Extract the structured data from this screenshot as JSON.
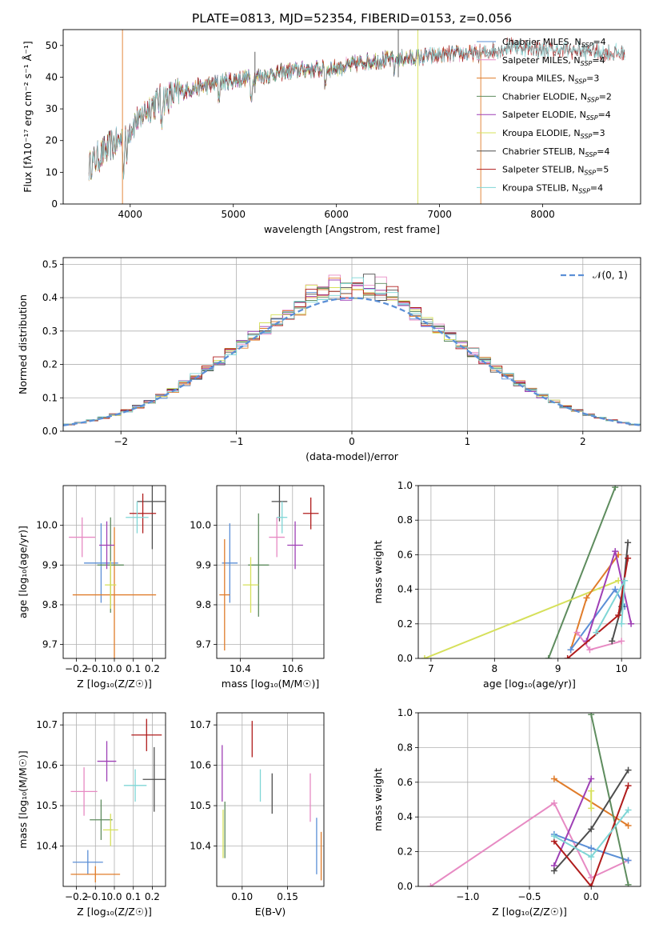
{
  "figure": {
    "title": "PLATE=0813, MJD=52354, FIBERID=0153, z=0.056"
  },
  "chart_data": [
    {
      "id": "spectrum",
      "type": "line",
      "title": "PLATE=0813, MJD=52354, FIBERID=0153, z=0.056",
      "xlabel": "wavelength [Angstrom, rest frame]",
      "ylabel": "Flux [fλ10⁻¹⁷ erg cm⁻² s⁻¹ Å⁻¹]",
      "xlim": [
        3350,
        8950
      ],
      "ylim": [
        0,
        55
      ],
      "xticks": [
        4000,
        5000,
        6000,
        7000,
        8000
      ],
      "yticks": [
        0,
        10,
        20,
        30,
        40,
        50
      ],
      "grid": false,
      "legend_position": "top-right",
      "continuum": {
        "x": [
          3600,
          3700,
          3800,
          3900,
          4000,
          4100,
          4200,
          4300,
          4400,
          4500,
          4700,
          4900,
          5100,
          5300,
          5500,
          5700,
          5900,
          6100,
          6300,
          6500,
          6700,
          6900,
          7100,
          7300,
          7400,
          7500,
          7700,
          7900,
          8100,
          8300,
          8500,
          8800
        ],
        "y": [
          12,
          15,
          18,
          20,
          24,
          28,
          31,
          33,
          34,
          35.5,
          37,
          38.5,
          39.5,
          40.5,
          41.5,
          42.5,
          42.5,
          43.5,
          45,
          45.5,
          46,
          46.5,
          47,
          47.5,
          47.5,
          48,
          50,
          49,
          48.5,
          48.5,
          48,
          47.5
        ]
      },
      "series": [
        {
          "name": "Chabrier MILES",
          "nssp": "4",
          "color": "#5b8fd6",
          "x_end": 7400
        },
        {
          "name": "Salpeter MILES",
          "nssp": "4",
          "color": "#e78ac3",
          "x_end": 7400
        },
        {
          "name": "Kroupa MILES",
          "nssp": "3",
          "color": "#e07c2a",
          "x_end": 7400
        },
        {
          "name": "Chabrier ELODIE",
          "nssp": "2",
          "color": "#5e8c5e",
          "x_end": 6800
        },
        {
          "name": "Salpeter ELODIE",
          "nssp": "4",
          "color": "#9e3fb5",
          "x_end": 6800
        },
        {
          "name": "Kroupa ELODIE",
          "nssp": "3",
          "color": "#d6e05a",
          "x_end": 6800
        },
        {
          "name": "Chabrier STELIB",
          "nssp": "4",
          "color": "#4d4d4d",
          "x_end": 8800
        },
        {
          "name": "Salpeter STELIB",
          "nssp": "5",
          "color": "#b01c1c",
          "x_end": 8800
        },
        {
          "name": "Kroupa STELIB",
          "nssp": "4",
          "color": "#7fd6d6",
          "x_end": 8800
        }
      ],
      "legend_suffix": "SSP"
    },
    {
      "id": "residuals",
      "type": "line",
      "xlabel": "(data-model)/error",
      "ylabel": "Normed distribution",
      "xlim": [
        -2.5,
        2.5
      ],
      "ylim": [
        0,
        0.52
      ],
      "xticks": [
        -2,
        -1,
        0,
        1,
        2
      ],
      "yticks": [
        0.0,
        0.1,
        0.2,
        0.3,
        0.4,
        0.5
      ],
      "grid": true,
      "legend_position": "top-right",
      "reference_curve": {
        "name": "𝒩(0, 1)",
        "color": "#5b8fd6",
        "style": "dashed"
      },
      "histogram_bin_width": 0.1
    },
    {
      "id": "age_vs_Z",
      "type": "scatter",
      "xlabel": "Z [log₁₀(Z/Z☉)]",
      "ylabel": "age  [log₁₀(age/yr)]",
      "xlim": [
        -0.27,
        0.27
      ],
      "ylim": [
        9.665,
        10.1
      ],
      "xticks": [
        -0.2,
        -0.1,
        0.0,
        0.1,
        0.2
      ],
      "yticks": [
        9.7,
        9.8,
        9.9,
        10.0
      ],
      "grid": true,
      "points": [
        {
          "color": "#5b8fd6",
          "x": -0.07,
          "y": 9.905,
          "xerr": 0.09,
          "yerr": 0.1
        },
        {
          "color": "#e78ac3",
          "x": -0.17,
          "y": 9.97,
          "xerr": 0.07,
          "yerr": 0.05
        },
        {
          "color": "#e07c2a",
          "x": 0.0,
          "y": 9.825,
          "xerr": 0.22,
          "yerr": 0.17
        },
        {
          "color": "#5e8c5e",
          "x": -0.02,
          "y": 9.9,
          "xerr": 0.07,
          "yerr": 0.12
        },
        {
          "color": "#9e3fb5",
          "x": -0.04,
          "y": 9.95,
          "xerr": 0.04,
          "yerr": 0.06
        },
        {
          "color": "#d6e05a",
          "x": -0.02,
          "y": 9.85,
          "xerr": 0.03,
          "yerr": 0.06
        },
        {
          "color": "#4d4d4d",
          "x": 0.2,
          "y": 10.06,
          "xerr": 0.08,
          "yerr": 0.12
        },
        {
          "color": "#b01c1c",
          "x": 0.15,
          "y": 10.03,
          "xerr": 0.07,
          "yerr": 0.05
        },
        {
          "color": "#7fd6d6",
          "x": 0.12,
          "y": 10.02,
          "xerr": 0.06,
          "yerr": 0.04
        }
      ]
    },
    {
      "id": "age_vs_mass",
      "type": "scatter",
      "xlabel": "mass [log₁₀(M/M☉)]",
      "ylabel": "",
      "xlim": [
        10.31,
        10.72
      ],
      "ylim": [
        9.665,
        10.1
      ],
      "xticks": [
        10.4,
        10.6
      ],
      "yticks": [
        9.7,
        9.8,
        9.9,
        10.0
      ],
      "grid": true,
      "points": [
        {
          "color": "#5b8fd6",
          "x": 10.36,
          "y": 9.905,
          "xerr": 0.03,
          "yerr": 0.1
        },
        {
          "color": "#e78ac3",
          "x": 10.54,
          "y": 9.97,
          "xerr": 0.03,
          "yerr": 0.05
        },
        {
          "color": "#e07c2a",
          "x": 10.34,
          "y": 9.825,
          "xerr": 0.02,
          "yerr": 0.14
        },
        {
          "color": "#5e8c5e",
          "x": 10.47,
          "y": 9.9,
          "xerr": 0.04,
          "yerr": 0.13
        },
        {
          "color": "#9e3fb5",
          "x": 10.61,
          "y": 9.95,
          "xerr": 0.03,
          "yerr": 0.06
        },
        {
          "color": "#d6e05a",
          "x": 10.44,
          "y": 9.85,
          "xerr": 0.03,
          "yerr": 0.07
        },
        {
          "color": "#4d4d4d",
          "x": 10.55,
          "y": 10.06,
          "xerr": 0.03,
          "yerr": 0.05
        },
        {
          "color": "#b01c1c",
          "x": 10.67,
          "y": 10.03,
          "xerr": 0.03,
          "yerr": 0.04
        },
        {
          "color": "#7fd6d6",
          "x": 10.56,
          "y": 10.02,
          "xerr": 0.02,
          "yerr": 0.04
        }
      ]
    },
    {
      "id": "weight_vs_age",
      "type": "line",
      "xlabel": "age  [log₁₀(age/yr)]",
      "ylabel": "mass weight",
      "xlim": [
        6.8,
        10.3
      ],
      "ylim": [
        0.0,
        1.0
      ],
      "xticks": [
        7,
        8,
        9,
        10
      ],
      "yticks": [
        0.0,
        0.2,
        0.4,
        0.6,
        0.8,
        1.0
      ],
      "grid": true,
      "series": [
        {
          "color": "#5e8c5e",
          "x": [
            8.85,
            9.9
          ],
          "y": [
            0.0,
            0.99
          ]
        },
        {
          "color": "#d6e05a",
          "x": [
            6.9,
            9.95
          ],
          "y": [
            0.0,
            0.45
          ]
        },
        {
          "color": "#e07c2a",
          "x": [
            9.2,
            9.45,
            9.95
          ],
          "y": [
            0.05,
            0.35,
            0.6
          ]
        },
        {
          "color": "#5b8fd6",
          "x": [
            9.2,
            9.9,
            10.05
          ],
          "y": [
            0.05,
            0.4,
            0.3
          ]
        },
        {
          "color": "#e78ac3",
          "x": [
            9.3,
            9.5,
            10.0
          ],
          "y": [
            0.15,
            0.05,
            0.1
          ]
        },
        {
          "color": "#9e3fb5",
          "x": [
            9.45,
            9.9,
            10.15
          ],
          "y": [
            0.1,
            0.62,
            0.2
          ]
        },
        {
          "color": "#4d4d4d",
          "x": [
            9.85,
            10.0,
            10.1
          ],
          "y": [
            0.1,
            0.3,
            0.67
          ]
        },
        {
          "color": "#b01c1c",
          "x": [
            9.15,
            9.95,
            10.1
          ],
          "y": [
            0.0,
            0.25,
            0.58
          ]
        },
        {
          "color": "#7fd6d6",
          "x": [
            9.6,
            10.05,
            10.0
          ],
          "y": [
            0.15,
            0.45,
            0.2
          ]
        }
      ]
    },
    {
      "id": "mass_vs_Z",
      "type": "scatter",
      "xlabel": "Z [log₁₀(Z/Z☉)]",
      "ylabel": "mass [log₁₀(M/M☉)]",
      "xlim": [
        -0.27,
        0.27
      ],
      "ylim": [
        10.3,
        10.73
      ],
      "xticks": [
        -0.2,
        -0.1,
        0.0,
        0.1,
        0.2
      ],
      "yticks": [
        10.4,
        10.5,
        10.6,
        10.7
      ],
      "grid": true,
      "points": [
        {
          "color": "#5b8fd6",
          "x": -0.14,
          "y": 10.36,
          "xerr": 0.08,
          "yerr": 0.03
        },
        {
          "color": "#e78ac3",
          "x": -0.16,
          "y": 10.535,
          "xerr": 0.07,
          "yerr": 0.06
        },
        {
          "color": "#e07c2a",
          "x": -0.1,
          "y": 10.33,
          "xerr": 0.13,
          "yerr": 0.02
        },
        {
          "color": "#5e8c5e",
          "x": -0.07,
          "y": 10.465,
          "xerr": 0.06,
          "yerr": 0.05
        },
        {
          "color": "#9e3fb5",
          "x": -0.04,
          "y": 10.61,
          "xerr": 0.05,
          "yerr": 0.05
        },
        {
          "color": "#d6e05a",
          "x": -0.02,
          "y": 10.44,
          "xerr": 0.04,
          "yerr": 0.04
        },
        {
          "color": "#4d4d4d",
          "x": 0.21,
          "y": 10.565,
          "xerr": 0.06,
          "yerr": 0.08
        },
        {
          "color": "#b01c1c",
          "x": 0.17,
          "y": 10.675,
          "xerr": 0.08,
          "yerr": 0.04
        },
        {
          "color": "#7fd6d6",
          "x": 0.11,
          "y": 10.55,
          "xerr": 0.06,
          "yerr": 0.04
        }
      ]
    },
    {
      "id": "mass_vs_EBV",
      "type": "scatter",
      "xlabel": "E(B-V)",
      "ylabel": "",
      "xlim": [
        0.072,
        0.19
      ],
      "ylim": [
        10.3,
        10.73
      ],
      "xticks": [
        0.1,
        0.15
      ],
      "yticks": [
        10.4,
        10.5,
        10.6,
        10.7
      ],
      "grid": true,
      "points": [
        {
          "color": "#5b8fd6",
          "x": 0.182,
          "y": 10.4,
          "xerr": 0.0,
          "yerr": 0.07
        },
        {
          "color": "#e78ac3",
          "x": 0.175,
          "y": 10.52,
          "xerr": 0.0,
          "yerr": 0.06
        },
        {
          "color": "#e07c2a",
          "x": 0.187,
          "y": 10.375,
          "xerr": 0.0,
          "yerr": 0.06
        },
        {
          "color": "#5e8c5e",
          "x": 0.081,
          "y": 10.44,
          "xerr": 0.0,
          "yerr": 0.07
        },
        {
          "color": "#9e3fb5",
          "x": 0.078,
          "y": 10.58,
          "xerr": 0.0,
          "yerr": 0.07
        },
        {
          "color": "#d6e05a",
          "x": 0.079,
          "y": 10.43,
          "xerr": 0.0,
          "yerr": 0.06
        },
        {
          "color": "#4d4d4d",
          "x": 0.133,
          "y": 10.53,
          "xerr": 0.0,
          "yerr": 0.05
        },
        {
          "color": "#b01c1c",
          "x": 0.111,
          "y": 10.665,
          "xerr": 0.0,
          "yerr": 0.045
        },
        {
          "color": "#7fd6d6",
          "x": 0.12,
          "y": 10.55,
          "xerr": 0.0,
          "yerr": 0.04
        }
      ]
    },
    {
      "id": "weight_vs_Z",
      "type": "line",
      "xlabel": "Z [log₁₀(Z/Z☉)]",
      "ylabel": "mass weight",
      "xlim": [
        -1.4,
        0.4
      ],
      "ylim": [
        0.0,
        1.0
      ],
      "xticks": [
        -1.0,
        -0.5,
        0.0
      ],
      "yticks": [
        0.0,
        0.2,
        0.4,
        0.6,
        0.8,
        1.0
      ],
      "grid": true,
      "series": [
        {
          "color": "#e78ac3",
          "x": [
            -1.3,
            -0.3,
            0.0,
            0.3
          ],
          "y": [
            0.0,
            0.48,
            0.05,
            0.15
          ]
        },
        {
          "color": "#e07c2a",
          "x": [
            -0.3,
            0.3
          ],
          "y": [
            0.62,
            0.35
          ]
        },
        {
          "color": "#5b8fd6",
          "x": [
            -0.3,
            0.0,
            0.3
          ],
          "y": [
            0.3,
            0.22,
            0.15
          ]
        },
        {
          "color": "#5e8c5e",
          "x": [
            0.0,
            0.3
          ],
          "y": [
            0.99,
            0.01
          ]
        },
        {
          "color": "#9e3fb5",
          "x": [
            -0.3,
            0.0
          ],
          "y": [
            0.12,
            0.62
          ]
        },
        {
          "color": "#d6e05a",
          "x": [
            0.0,
            0.0
          ],
          "y": [
            0.55,
            0.45
          ]
        },
        {
          "color": "#4d4d4d",
          "x": [
            -0.3,
            0.0,
            0.3
          ],
          "y": [
            0.09,
            0.33,
            0.67
          ]
        },
        {
          "color": "#b01c1c",
          "x": [
            -0.3,
            0.0,
            0.3
          ],
          "y": [
            0.26,
            0.0,
            0.58
          ]
        },
        {
          "color": "#7fd6d6",
          "x": [
            -0.3,
            0.0,
            0.3
          ],
          "y": [
            0.29,
            0.17,
            0.44
          ]
        }
      ]
    }
  ]
}
